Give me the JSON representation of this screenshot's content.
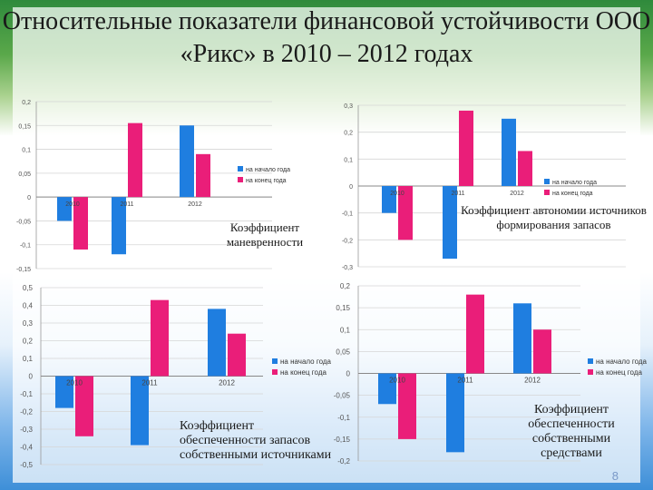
{
  "slide": {
    "title": "Относительные показатели финансовой устойчивости ООО «Рикс» в 2010 – 2012 годах",
    "page_number": "8",
    "colors": {
      "start": "#1f7ee0",
      "end": "#ea1e79"
    }
  },
  "chart_data": [
    {
      "type": "bar",
      "title": "Коэффициент маневренности",
      "categories": [
        "2010",
        "2011",
        "2012"
      ],
      "series": [
        {
          "name": "на начало года",
          "color": "#1f7ee0",
          "values": [
            -0.05,
            -0.12,
            0.15
          ]
        },
        {
          "name": "на конец года",
          "color": "#ea1e79",
          "values": [
            -0.11,
            0.155,
            0.09
          ]
        }
      ],
      "ylim": [
        -0.15,
        0.2
      ],
      "yticks": [
        -0.15,
        -0.1,
        -0.05,
        0,
        0.05,
        0.1,
        0.15,
        0.2
      ],
      "ytick_labels": [
        "-0,15",
        "-0,1",
        "-0,05",
        "0",
        "0,05",
        "0,1",
        "0,15",
        "0,2"
      ],
      "legend": "right"
    },
    {
      "type": "bar",
      "title": "Коэффициент автономии источников формирования запасов",
      "categories": [
        "2010",
        "2011",
        "2012"
      ],
      "series": [
        {
          "name": "на начало года",
          "color": "#1f7ee0",
          "values": [
            -0.1,
            -0.27,
            0.25
          ]
        },
        {
          "name": "на конец года",
          "color": "#ea1e79",
          "values": [
            -0.2,
            0.28,
            0.13
          ]
        }
      ],
      "ylim": [
        -0.3,
        0.3
      ],
      "yticks": [
        -0.3,
        -0.2,
        -0.1,
        0,
        0.1,
        0.2,
        0.3
      ],
      "ytick_labels": [
        "-0,3",
        "-0,2",
        "-0,1",
        "0",
        "0,1",
        "0,2",
        "0,3"
      ],
      "legend": "right"
    },
    {
      "type": "bar",
      "title": "Коэффициент обеспеченности запасов собственными источниками",
      "categories": [
        "2010",
        "2011",
        "2012"
      ],
      "series": [
        {
          "name": "на начало года",
          "color": "#1f7ee0",
          "values": [
            -0.18,
            -0.39,
            0.38
          ]
        },
        {
          "name": "на конец года",
          "color": "#ea1e79",
          "values": [
            -0.34,
            0.43,
            0.24
          ]
        }
      ],
      "ylim": [
        -0.5,
        0.5
      ],
      "yticks": [
        -0.5,
        -0.4,
        -0.3,
        -0.2,
        -0.1,
        0,
        0.1,
        0.2,
        0.3,
        0.4,
        0.5
      ],
      "ytick_labels": [
        "-0,5",
        "-0,4",
        "-0,3",
        "-0,2",
        "-0,1",
        "0",
        "0,1",
        "0,2",
        "0,3",
        "0,4",
        "0,5"
      ],
      "legend": "right"
    },
    {
      "type": "bar",
      "title": "Коэффициент обеспеченности собственными средствами",
      "categories": [
        "2010",
        "2011",
        "2012"
      ],
      "series": [
        {
          "name": "на начало года",
          "color": "#1f7ee0",
          "values": [
            -0.07,
            -0.18,
            0.16
          ]
        },
        {
          "name": "на конец года",
          "color": "#ea1e79",
          "values": [
            -0.15,
            0.18,
            0.1
          ]
        }
      ],
      "ylim": [
        -0.2,
        0.2
      ],
      "yticks": [
        -0.2,
        -0.15,
        -0.1,
        -0.05,
        0,
        0.05,
        0.1,
        0.15,
        0.2
      ],
      "ytick_labels": [
        "-0,2",
        "-0,15",
        "-0,1",
        "-0,05",
        "0",
        "0,05",
        "0,1",
        "0,15",
        "0,2"
      ],
      "legend": "right"
    }
  ]
}
